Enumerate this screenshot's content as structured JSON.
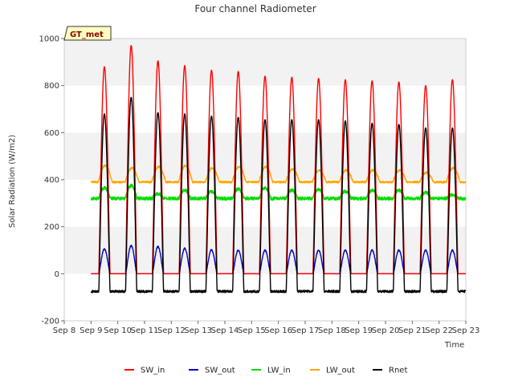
{
  "chart_data": {
    "type": "line",
    "title": "Four channel Radiometer",
    "xlabel": "Time",
    "ylabel": "Solar Radiation (W/m2)",
    "site_label": "GT_met",
    "ylim": [
      -200,
      1000
    ],
    "xlim": [
      0,
      15
    ],
    "y_ticks": [
      -200,
      0,
      200,
      400,
      600,
      800,
      1000
    ],
    "x_tick_labels": [
      "Sep 8",
      "Sep 9",
      "Sep 10",
      "Sep 11",
      "Sep 12",
      "Sep 13",
      "Sep 14",
      "Sep 15",
      "Sep 16",
      "Sep 17",
      "Sep 18",
      "Sep 19",
      "Sep 20",
      "Sep 21",
      "Sep 22",
      "Sep 23"
    ],
    "day_peaks": {
      "SW_in": [
        880,
        970,
        905,
        885,
        865,
        860,
        840,
        835,
        830,
        825,
        820,
        815,
        800,
        825
      ],
      "SW_out": [
        105,
        120,
        115,
        108,
        102,
        100,
        100,
        100,
        100,
        100,
        100,
        100,
        100,
        100
      ],
      "LW_in": [
        365,
        375,
        340,
        355,
        350,
        360,
        365,
        355,
        360,
        350,
        355,
        355,
        345,
        335
      ],
      "LW_out": [
        460,
        450,
        455,
        460,
        450,
        455,
        455,
        445,
        440,
        440,
        440,
        440,
        430,
        450
      ],
      "Rnet": [
        680,
        750,
        685,
        680,
        670,
        665,
        655,
        655,
        655,
        650,
        640,
        635,
        620,
        620
      ]
    },
    "night_values": {
      "SW_in": 0,
      "SW_out": 0,
      "LW_in": 320,
      "LW_out": 390,
      "Rnet": -75
    },
    "series": [
      {
        "name": "SW_in",
        "color": "#ff0000"
      },
      {
        "name": "SW_out",
        "color": "#0000cc"
      },
      {
        "name": "LW_in",
        "color": "#00dd00"
      },
      {
        "name": "LW_out",
        "color": "#ffa500"
      },
      {
        "name": "Rnet",
        "color": "#000000"
      }
    ],
    "legend_position": "bottom-center",
    "grid": "horizontal bands"
  }
}
